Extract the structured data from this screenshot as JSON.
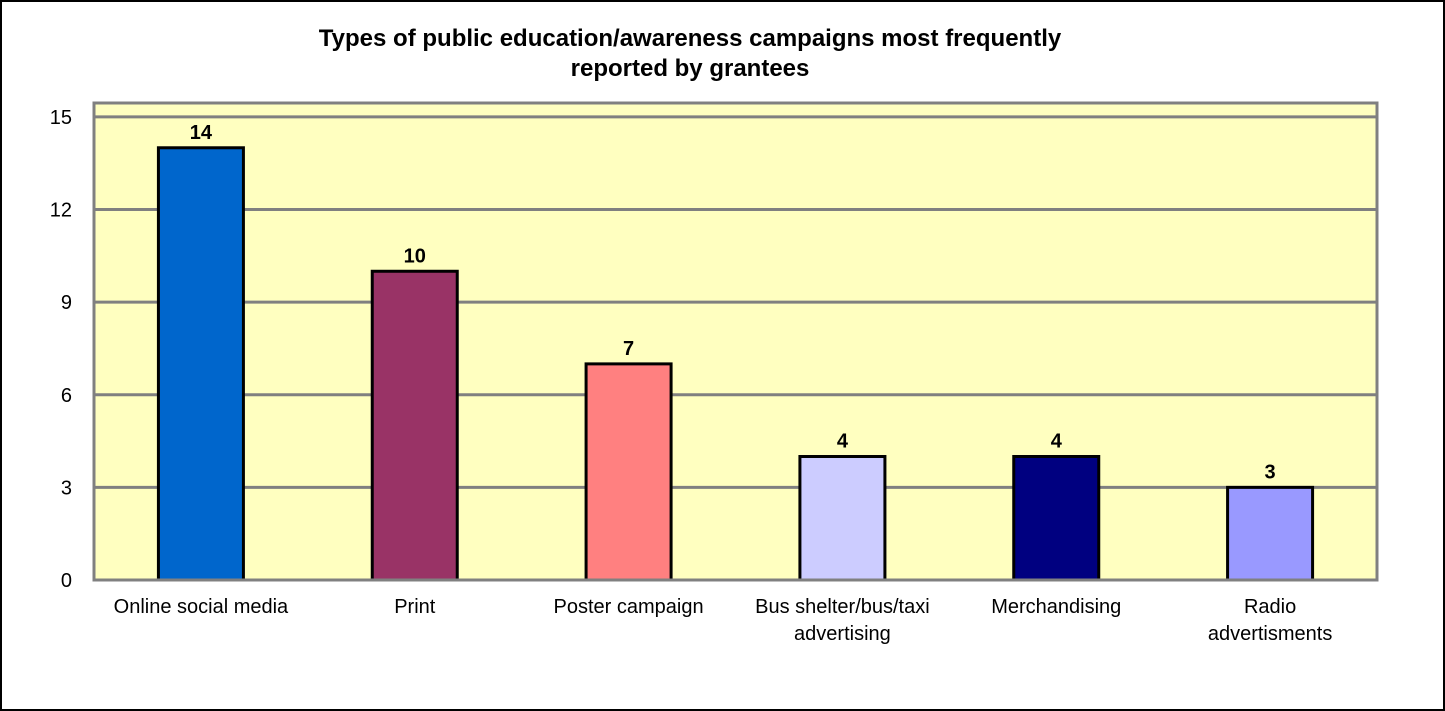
{
  "chart_data": {
    "type": "bar",
    "title": "Types of public education/awareness campaigns most frequently reported by grantees",
    "title_lines": [
      "Types of public education/awareness campaigns most frequently",
      "reported by grantees"
    ],
    "xlabel": "",
    "ylabel": "",
    "categories": [
      "Online social media",
      "Print",
      "Poster campaign",
      "Bus shelter/bus/taxi advertising",
      "Merchandising",
      "Radio advertisments"
    ],
    "category_lines": [
      [
        "Online social media"
      ],
      [
        "Print"
      ],
      [
        "Poster campaign"
      ],
      [
        "Bus shelter/bus/taxi",
        "advertising"
      ],
      [
        "Merchandising"
      ],
      [
        "Radio",
        "advertisments"
      ]
    ],
    "values": [
      14,
      10,
      7,
      4,
      4,
      3
    ],
    "data_labels": [
      "14",
      "10",
      "7",
      "4",
      "4",
      "3"
    ],
    "bar_colors": [
      "#0066CC",
      "#993366",
      "#FF8080",
      "#CCCCFF",
      "#000080",
      "#9999FF"
    ],
    "ylim": [
      0,
      15
    ],
    "yticks": [
      0,
      3,
      6,
      9,
      12,
      15
    ],
    "ytick_labels": [
      "0",
      "3",
      "6",
      "9",
      "12",
      "15"
    ],
    "grid": true,
    "legend": "none",
    "plot_background": "#FFFFC0",
    "gridline_color": "#808080"
  }
}
